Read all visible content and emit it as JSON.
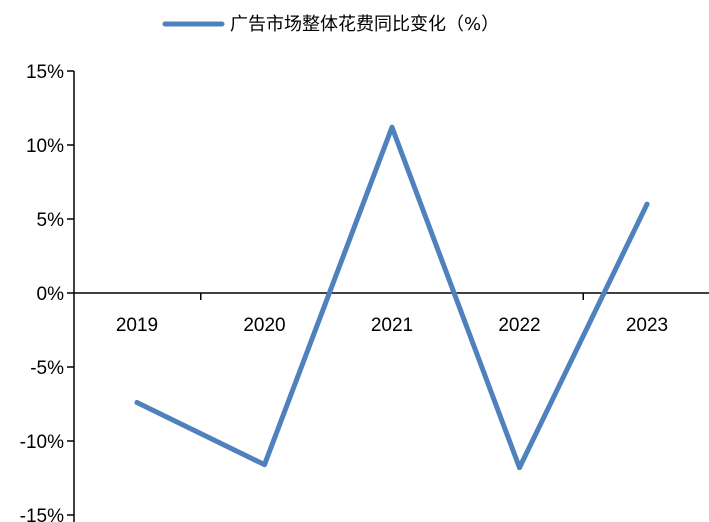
{
  "chart_data": {
    "type": "line",
    "legend": {
      "position": "top-center"
    },
    "categories": [
      "2019",
      "2020",
      "2021",
      "2022",
      "2023"
    ],
    "series": [
      {
        "name": "广告市场整体花费同比变化（%）",
        "values": [
          -7.4,
          -11.6,
          11.2,
          -11.8,
          6.0
        ],
        "color": "#4f81bd"
      }
    ],
    "ylim": [
      -15,
      15
    ],
    "yticks": [
      -15,
      -10,
      -5,
      0,
      5,
      10,
      15
    ],
    "ytick_labels": [
      "-15%",
      "-10%",
      "-5%",
      "0%",
      "5%",
      "10%",
      "15%"
    ],
    "grid": false,
    "title": "",
    "xlabel": "",
    "ylabel": ""
  }
}
